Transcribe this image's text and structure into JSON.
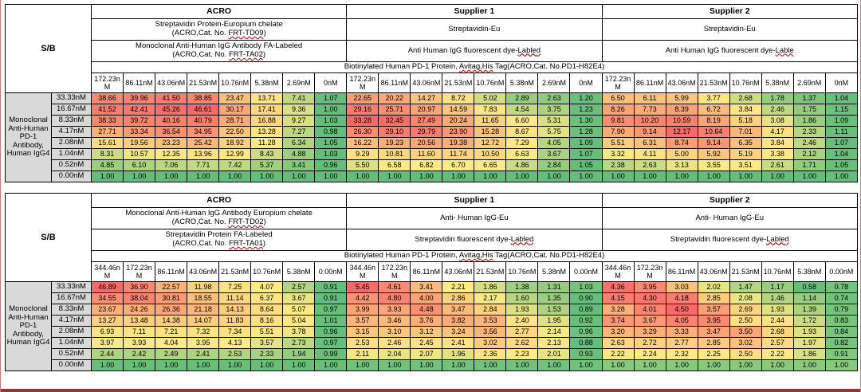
{
  "page": {
    "background": "#FFFFFF",
    "side_border_color": "#CC7A7A",
    "bottom_bar_color": "#8B3A3A"
  },
  "heatmap": {
    "min_color": "#63BE7B",
    "mid_color": "#FFEB84",
    "max_color": "#F8696B",
    "label_bg": "#D9D9D9"
  },
  "spellcheck": {
    "underline_color": "#C00000",
    "words": [
      "Labled",
      "Lable",
      "Avitag,His",
      "FRT-TD09",
      "FRT-TA02",
      "FRT-TD02",
      "FRT-TA01"
    ]
  },
  "tables": [
    {
      "corner_label": "S/B",
      "row_group_label": "Monoclonal Anti-Human PD-1 Antibody, Human IgG4",
      "supplier_headers": [
        "ACRO",
        "Supplier 1",
        "Supplier 2"
      ],
      "detection_reagent_row_1": [
        [
          "Streptavidin Protein-Europium chelate",
          "(ACRO,Cat. No. FRT-TD09)"
        ],
        [
          "Streptavidin-Eu"
        ],
        [
          "Streptavidin-Eu"
        ]
      ],
      "detection_reagent_row_2": [
        [
          "Monoclonal Anti-Human IgG Antibody FA-Labeled",
          "(ACRO,Cat. No. FRT-TA02)"
        ],
        [
          "Anti Human IgG fluorescent dye-Labled"
        ],
        [
          "Anti Human IgG fluorescent dye-Lable"
        ]
      ],
      "tracer_row": "Biotinylated Human PD-1 Protein, Avitag,His Tag(ACRO,Cat. No.PD1-H82E4)",
      "tracer_conc_headers": [
        "172.23nM",
        "86.11nM",
        "43.06nM",
        "21.53nM",
        "10.76nM",
        "5.38nM",
        "2.69nM",
        "0nM"
      ],
      "antibody_conc_rows": [
        "33.33nM",
        "16.67nM",
        "8.33nM",
        "4.17nM",
        "2.08nM",
        "1.04nM",
        "0.52nM",
        "0.00nM"
      ],
      "values": [
        [
          [
            38.66,
            39.96,
            41.5,
            38.85,
            23.47,
            13.71,
            7.41,
            1.07
          ],
          [
            41.52,
            42.41,
            45.26,
            46.61,
            30.17,
            17.41,
            9.36,
            1.0
          ],
          [
            38.33,
            39.72,
            40.16,
            40.79,
            28.71,
            16.88,
            9.27,
            1.03
          ],
          [
            27.71,
            33.34,
            36.54,
            34.95,
            22.5,
            13.28,
            7.27,
            0.98
          ],
          [
            15.61,
            19.56,
            23.23,
            25.42,
            18.92,
            11.28,
            6.34,
            1.05
          ],
          [
            8.31,
            10.57,
            12.35,
            13.96,
            12.99,
            8.43,
            4.88,
            1.03
          ],
          [
            4.85,
            6.1,
            7.06,
            7.71,
            7.42,
            5.37,
            3.41,
            0.96
          ],
          [
            1.0,
            1.0,
            1.0,
            1.0,
            1.0,
            1.0,
            1.0,
            1.0
          ]
        ],
        [
          [
            22.65,
            20.22,
            14.27,
            8.72,
            5.02,
            2.89,
            2.63,
            1.2
          ],
          [
            29.16,
            25.71,
            20.97,
            14.59,
            7.83,
            4.54,
            3.75,
            1.23
          ],
          [
            33.28,
            32.45,
            27.49,
            20.24,
            11.65,
            6.6,
            5.31,
            1.3
          ],
          [
            26.3,
            29.1,
            29.79,
            23.9,
            15.28,
            8.67,
            5.75,
            1.28
          ],
          [
            16.22,
            19.23,
            20.56,
            19.38,
            12.72,
            7.29,
            4.05,
            1.09
          ],
          [
            9.29,
            10.81,
            11.6,
            11.74,
            10.5,
            6.63,
            3.67,
            1.07
          ],
          [
            5.5,
            6.58,
            6.82,
            6.7,
            6.65,
            4.86,
            2.84,
            1.05
          ],
          [
            1.0,
            1.0,
            1.0,
            1.0,
            1.0,
            1.0,
            1.0,
            1.0
          ]
        ],
        [
          [
            6.5,
            6.11,
            5.99,
            3.77,
            2.68,
            1.78,
            1.37,
            1.04
          ],
          [
            8.26,
            7.73,
            8.39,
            6.72,
            3.84,
            2.46,
            1.75,
            1.15
          ],
          [
            9.81,
            10.2,
            10.59,
            8.19,
            5.18,
            3.08,
            1.86,
            1.09
          ],
          [
            7.9,
            9.14,
            12.17,
            10.64,
            7.01,
            4.17,
            2.33,
            1.11
          ],
          [
            5.51,
            6.31,
            8.74,
            9.14,
            6.35,
            3.84,
            2.46,
            1.07
          ],
          [
            3.32,
            4.11,
            5.0,
            5.92,
            5.19,
            3.38,
            2.12,
            1.04
          ],
          [
            2.38,
            2.63,
            3.13,
            3.55,
            3.51,
            2.61,
            1.71,
            1.05
          ],
          [
            1.0,
            1.0,
            1.0,
            1.0,
            1.0,
            1.0,
            1.0,
            1.0
          ]
        ]
      ]
    },
    {
      "corner_label": "S/B",
      "row_group_label": "Monoclonal Anti-Human PD-1 Antibody, Human IgG4",
      "supplier_headers": [
        "ACRO",
        "Supplier 1",
        "Supplier 2"
      ],
      "detection_reagent_row_1": [
        [
          "Monoclonal Anti-Human IgG Antibody Europium chelate",
          "(ACRO,Cat. No. FRT-TD02)"
        ],
        [
          "Anti- Human IgG-Eu"
        ],
        [
          "Anti- Human IgG-Eu"
        ]
      ],
      "detection_reagent_row_2": [
        [
          "Streptavidin Protein FA-Labeled",
          "(ACRO,Cat. No. FRT-TA01)"
        ],
        [
          "Streptavidin fluorescent dye-Labled"
        ],
        [
          "Streptavidin fluorescent dye-Labled"
        ]
      ],
      "tracer_row": "Biotinylated Human PD-1 Protein, Avitag,His Tag(ACRO,Cat. No.PD1-H82E4)",
      "tracer_conc_headers": [
        "344.46nM",
        "172.23nM",
        "86.11nM",
        "43.06nM",
        "21.53nM",
        "10.76nM",
        "5.38nM",
        "0.00nM"
      ],
      "antibody_conc_rows": [
        "33.33nM",
        "16.67nM",
        "8.33nM",
        "4.17nM",
        "2.08nM",
        "1.04nM",
        "0.52nM",
        "0.00nM"
      ],
      "values": [
        [
          [
            46.89,
            36.9,
            22.57,
            11.98,
            7.25,
            4.07,
            2.57,
            0.91
          ],
          [
            34.55,
            38.04,
            30.81,
            18.55,
            11.14,
            6.37,
            3.67,
            0.91
          ],
          [
            23.67,
            24.26,
            26.36,
            21.18,
            14.13,
            8.64,
            5.07,
            0.97
          ],
          [
            13.27,
            13.48,
            14.38,
            14.07,
            11.83,
            8.16,
            5.04,
            1.01
          ],
          [
            6.93,
            7.11,
            7.21,
            7.32,
            7.34,
            5.51,
            3.78,
            0.96
          ],
          [
            3.97,
            3.93,
            4.04,
            3.95,
            4.13,
            3.57,
            2.73,
            0.97
          ],
          [
            2.44,
            2.42,
            2.49,
            2.41,
            2.53,
            2.33,
            1.94,
            0.99
          ],
          [
            1.0,
            1.0,
            1.0,
            1.0,
            1.0,
            1.0,
            1.0,
            1.0
          ]
        ],
        [
          [
            5.45,
            4.61,
            3.41,
            2.21,
            1.86,
            1.38,
            1.31,
            1.03
          ],
          [
            4.42,
            4.8,
            4.0,
            2.86,
            2.17,
            1.6,
            1.35,
            0.9
          ],
          [
            3.99,
            3.93,
            4.48,
            3.47,
            2.84,
            1.93,
            1.53,
            0.89
          ],
          [
            3.57,
            3.46,
            3.76,
            3.82,
            3.53,
            2.4,
            1.95,
            0.92
          ],
          [
            3.15,
            3.1,
            3.12,
            3.24,
            3.56,
            2.77,
            2.14,
            0.96
          ],
          [
            2.53,
            2.46,
            2.45,
            2.41,
            3.02,
            2.62,
            2.13,
            0.88
          ],
          [
            2.11,
            2.04,
            2.07,
            1.96,
            2.36,
            2.23,
            2.01,
            0.93
          ],
          [
            1.0,
            1.0,
            1.0,
            1.0,
            1.0,
            1.0,
            1.0,
            1.0
          ]
        ],
        [
          [
            4.36,
            3.95,
            3.03,
            2.02,
            1.47,
            1.17,
            0.58,
            0.78
          ],
          [
            4.15,
            4.3,
            4.18,
            2.85,
            2.08,
            1.46,
            1.14,
            0.74
          ],
          [
            3.28,
            4.01,
            4.5,
            3.57,
            2.69,
            1.93,
            1.39,
            0.79
          ],
          [
            3.74,
            3.67,
            4.05,
            3.95,
            2.5,
            2.44,
            1.72,
            0.83
          ],
          [
            3.2,
            3.29,
            3.33,
            3.47,
            3.5,
            2.68,
            1.93,
            0.84
          ],
          [
            2.63,
            2.72,
            2.77,
            2.85,
            3.02,
            2.57,
            1.97,
            0.82
          ],
          [
            2.22,
            2.24,
            2.32,
            2.25,
            2.5,
            2.22,
            1.86,
            0.91
          ],
          [
            1.0,
            1.0,
            1.0,
            1.0,
            1.0,
            1.0,
            1.0,
            1.0
          ]
        ]
      ]
    }
  ]
}
